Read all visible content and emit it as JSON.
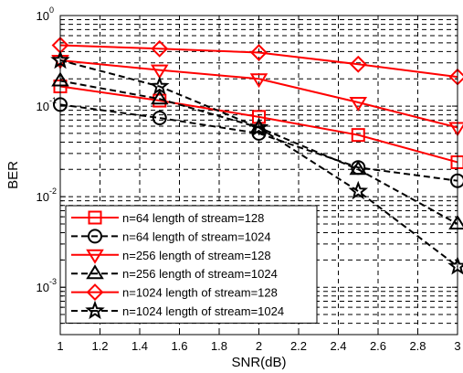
{
  "chart_data": {
    "type": "line",
    "xlabel": "SNR(dB)",
    "ylabel": "BER",
    "xlim": [
      1,
      3
    ],
    "ylim": [
      0.0003,
      1
    ],
    "yscale": "log",
    "grid": true,
    "grid_style": "dashed",
    "legend_position": "bottom-left",
    "x_ticks": [
      "1",
      "1.2",
      "1.4",
      "1.6",
      "1.8",
      "2",
      "2.2",
      "2.4",
      "2.6",
      "2.8",
      "3"
    ],
    "y_ticks": [
      {
        "value": 1,
        "base": "10",
        "exp": "0"
      },
      {
        "value": 0.1,
        "base": "10",
        "exp": "-1"
      },
      {
        "value": 0.01,
        "base": "10",
        "exp": "-2"
      },
      {
        "value": 0.001,
        "base": "10",
        "exp": "-3"
      }
    ],
    "x": [
      1,
      1.5,
      2,
      2.5,
      3
    ],
    "series": [
      {
        "name": "n=64 length of stream=128",
        "color": "#ff0000",
        "dash": "solid",
        "marker": "square",
        "values": [
          0.165,
          0.115,
          0.076,
          0.048,
          0.024
        ]
      },
      {
        "name": "n=64 length of stream=1024",
        "color": "#000000",
        "dash": "dashed",
        "marker": "circle",
        "values": [
          0.104,
          0.074,
          0.05,
          0.021,
          0.015
        ]
      },
      {
        "name": "n=256 length of stream=128",
        "color": "#ff0000",
        "dash": "solid",
        "marker": "triangle-down",
        "values": [
          0.32,
          0.25,
          0.2,
          0.11,
          0.058
        ]
      },
      {
        "name": "n=256 length of stream=1024",
        "color": "#000000",
        "dash": "dashed",
        "marker": "triangle-up",
        "values": [
          0.19,
          0.12,
          0.058,
          0.02,
          0.005
        ]
      },
      {
        "name": "n=1024 length of stream=128",
        "color": "#ff0000",
        "dash": "solid",
        "marker": "diamond",
        "values": [
          0.47,
          0.43,
          0.39,
          0.29,
          0.21
        ]
      },
      {
        "name": "n=1024 length of stream=1024",
        "color": "#000000",
        "dash": "dashed",
        "marker": "star",
        "values": [
          0.32,
          0.165,
          0.058,
          0.0115,
          0.0017
        ]
      }
    ]
  }
}
